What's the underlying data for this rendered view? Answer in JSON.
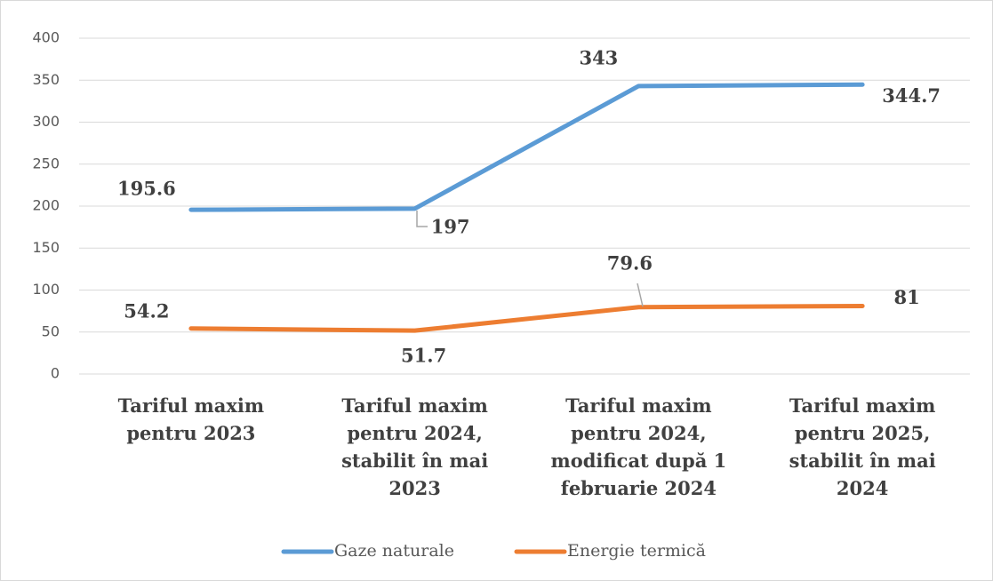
{
  "chart_data": {
    "type": "line",
    "categories": [
      "Tariful maxim pentru 2023",
      "Tariful maxim pentru 2024, stabilit în mai 2023",
      "Tariful maxim pentru 2024, modificat după 1 februarie 2024",
      "Tariful maxim pentru 2025, stabilit în mai 2024"
    ],
    "series": [
      {
        "name": "Gaze naturale",
        "color": "#5b9bd5",
        "values": [
          195.6,
          197,
          343,
          344.7
        ]
      },
      {
        "name": "Energie termică",
        "color": "#ed7d31",
        "values": [
          54.2,
          51.7,
          79.6,
          81
        ]
      }
    ],
    "ylim": [
      0,
      400
    ],
    "yticks": [
      0,
      50,
      100,
      150,
      200,
      250,
      300,
      350,
      400
    ],
    "grid": true,
    "legend": "bottom"
  }
}
